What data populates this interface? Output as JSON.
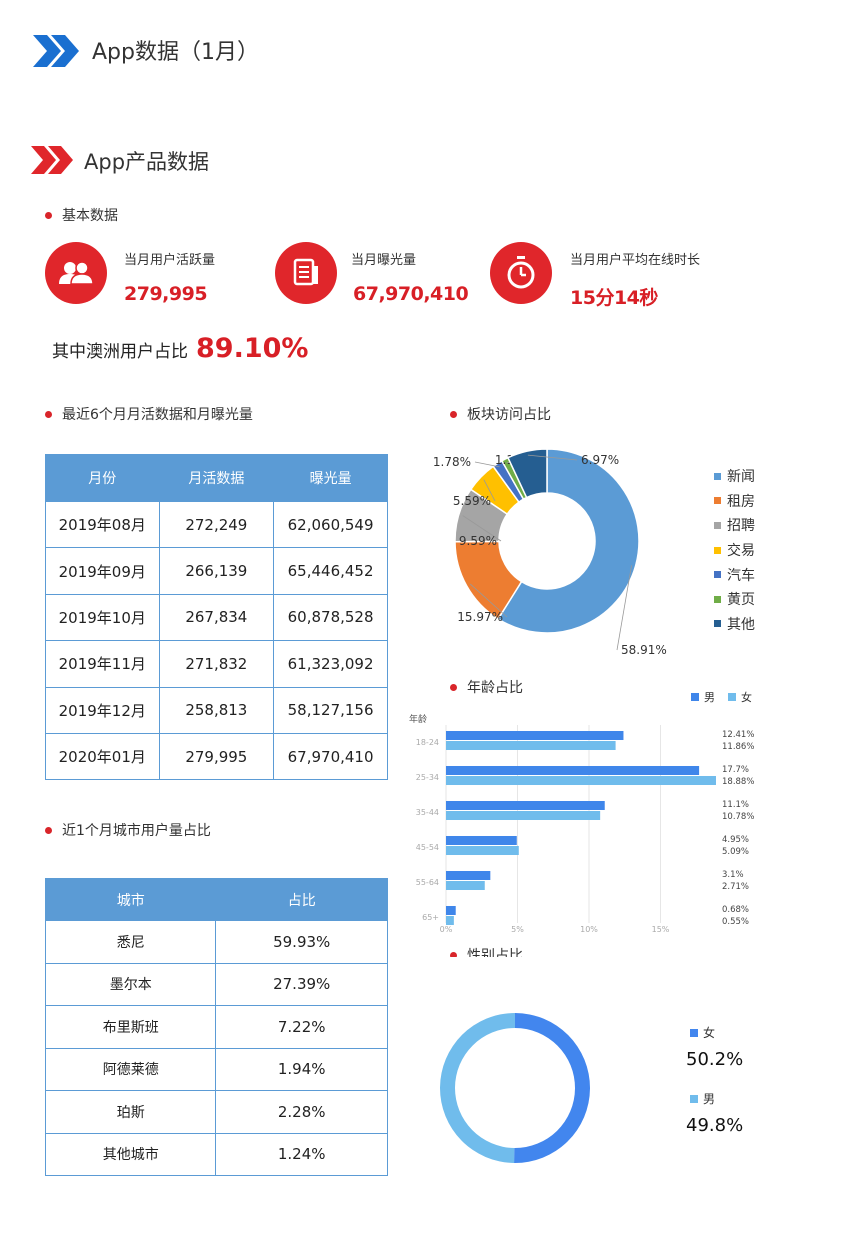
{
  "page": {
    "title": "App数据（1月）",
    "subtitle": "App产品数据",
    "colors": {
      "accent_blue": "#1a6fd0",
      "accent_red": "#e0262b",
      "table_header": "#5b9bd5"
    }
  },
  "basic": {
    "heading": "基本数据",
    "kpis": [
      {
        "icon": "users-icon",
        "label": "当月用户活跃量",
        "value": "279,995"
      },
      {
        "icon": "document-icon",
        "label": "当月曝光量",
        "value": "67,970,410"
      },
      {
        "icon": "stopwatch-icon",
        "label": "当月用户平均在线时长",
        "value": "15分14秒"
      }
    ],
    "share_label": "其中澳洲用户占比",
    "share_value": "89.10%"
  },
  "monthly": {
    "heading": "最近6个月月活数据和月曝光量",
    "columns": [
      "月份",
      "月活数据",
      "曝光量"
    ],
    "rows": [
      [
        "2019年08月",
        "272,249",
        "62,060,549"
      ],
      [
        "2019年09月",
        "266,139",
        "65,446,452"
      ],
      [
        "2019年10月",
        "267,834",
        "60,878,528"
      ],
      [
        "2019年11月",
        "271,832",
        "61,323,092"
      ],
      [
        "2019年12月",
        "258,813",
        "58,127,156"
      ],
      [
        "2020年01月",
        "279,995",
        "67,970,410"
      ]
    ]
  },
  "city": {
    "heading": "近1个月城市用户量占比",
    "columns": [
      "城市",
      "占比"
    ],
    "rows": [
      [
        "悉尼",
        "59.93%"
      ],
      [
        "墨尔本",
        "27.39%"
      ],
      [
        "布里斯班",
        "7.22%"
      ],
      [
        "阿德莱德",
        "1.94%"
      ],
      [
        "珀斯",
        "2.28%"
      ],
      [
        "其他城市",
        "1.24%"
      ]
    ]
  },
  "chart_data": [
    {
      "type": "pie",
      "title": "板块访问占比",
      "categories": [
        "新闻",
        "租房",
        "招聘",
        "交易",
        "汽车",
        "黄页",
        "其他"
      ],
      "values": [
        58.91,
        15.97,
        9.59,
        5.59,
        1.78,
        1.19,
        6.97
      ],
      "labels": [
        "58.91%",
        "15.97%",
        "9.59%",
        "5.59%",
        "1.78%",
        "1.19%",
        "6.97%"
      ],
      "colors": [
        "#5b9bd5",
        "#ed7d31",
        "#a5a5a5",
        "#ffc000",
        "#4472c4",
        "#70ad47",
        "#255e91"
      ],
      "legend": "right"
    },
    {
      "type": "bar",
      "orientation": "horizontal",
      "title": "年龄占比",
      "ylabel": "年龄",
      "categories": [
        "18-24",
        "25-34",
        "35-44",
        "45-54",
        "55-64",
        "65+"
      ],
      "series": [
        {
          "name": "男",
          "values": [
            12.41,
            17.7,
            11.1,
            4.95,
            3.1,
            0.68
          ],
          "labels": [
            "12.41%",
            "17.7%",
            "11.1%",
            "4.95%",
            "3.1%",
            "0.68%"
          ],
          "color": "#3f86ea"
        },
        {
          "name": "女",
          "values": [
            11.86,
            18.88,
            10.78,
            5.09,
            2.71,
            0.55
          ],
          "labels": [
            "11.86%",
            "18.88%",
            "10.78%",
            "5.09%",
            "2.71%",
            "0.55%"
          ],
          "color": "#70bcec"
        }
      ],
      "xticks": [
        "0%",
        "5%",
        "10%",
        "15%"
      ],
      "xlim": [
        0,
        19
      ],
      "grid": true,
      "legend": "top-right"
    },
    {
      "type": "pie",
      "title": "性别占比",
      "categories": [
        "女",
        "男"
      ],
      "values": [
        50.2,
        49.8
      ],
      "labels": [
        "50.2%",
        "49.8%"
      ],
      "colors": [
        "#4286ee",
        "#70bcec"
      ],
      "legend": "right"
    }
  ]
}
